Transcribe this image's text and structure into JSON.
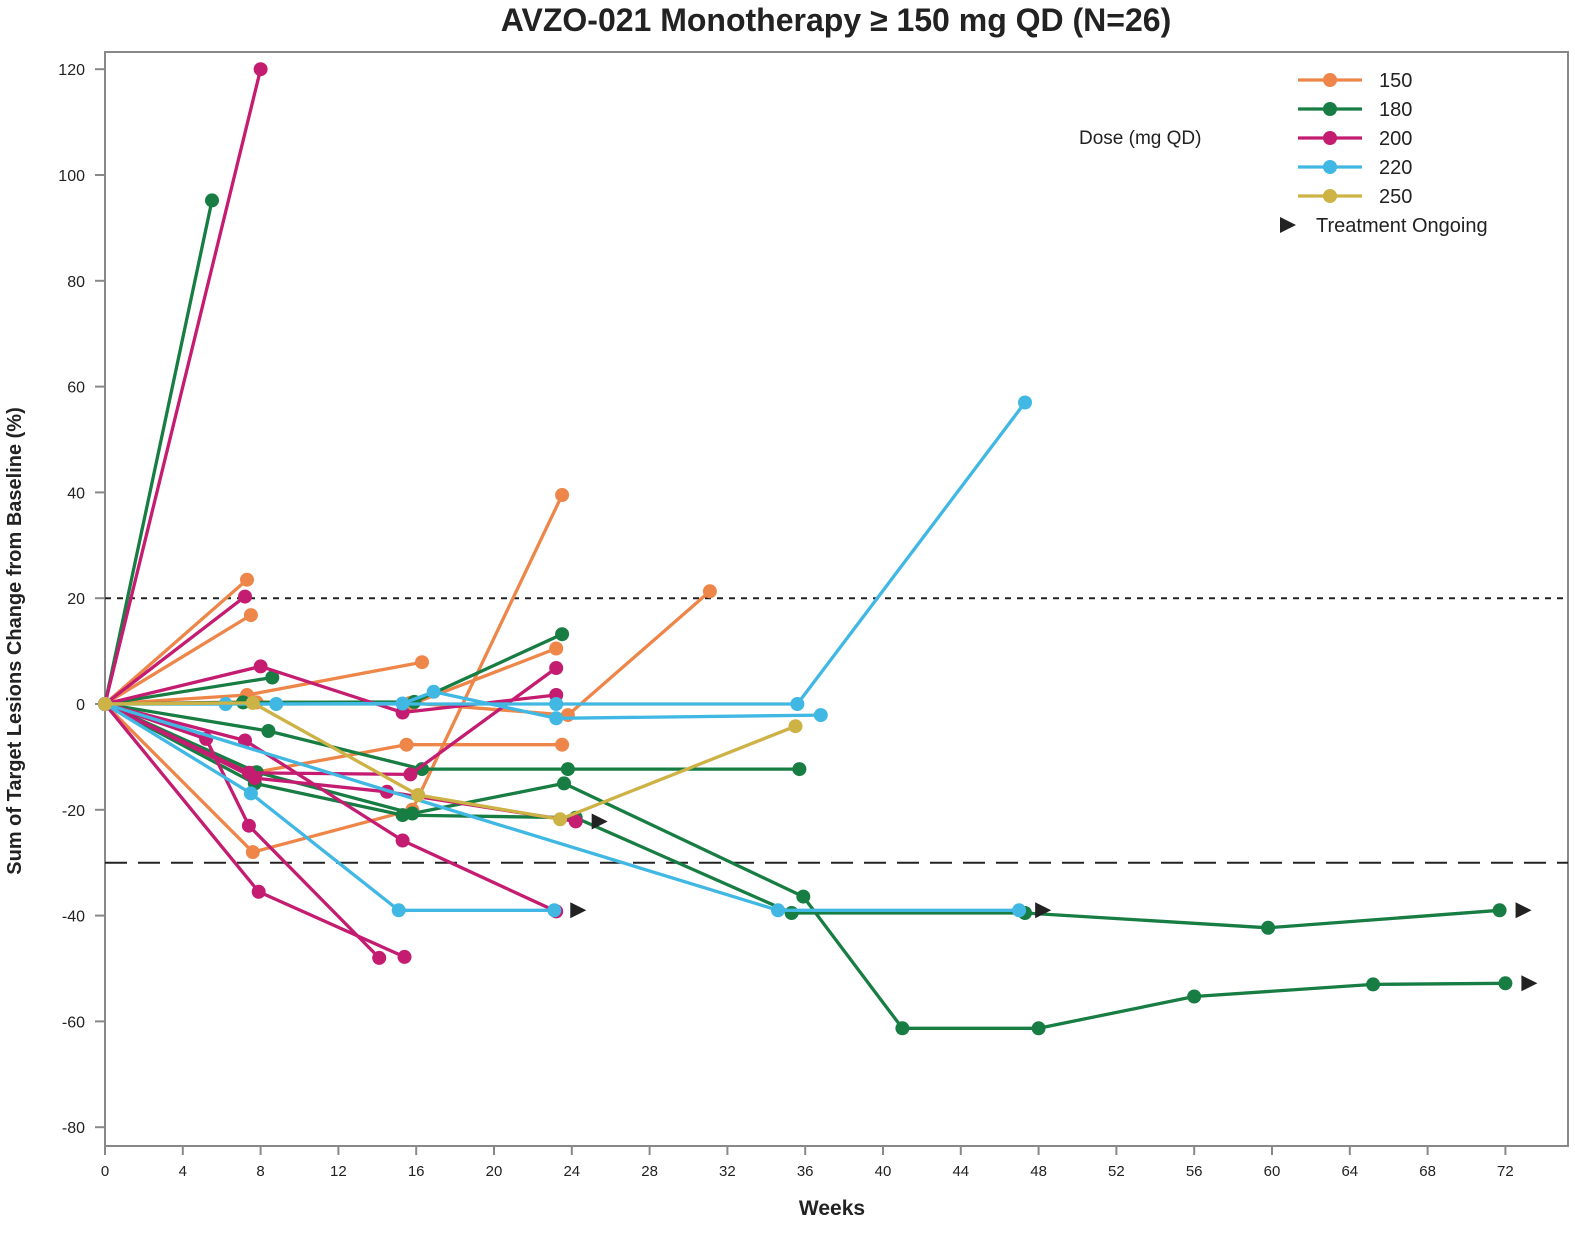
{
  "chart_data": {
    "type": "line",
    "title": "AVZO-021 Monotherapy ≥ 150 mg QD (N=26)",
    "xlabel": "Weeks",
    "ylabel": "Sum of Target Lesions Change from Baseline (%)",
    "xlim": [
      0,
      74
    ],
    "ylim": [
      -83,
      124
    ],
    "xticks": [
      0,
      4,
      8,
      12,
      16,
      20,
      24,
      28,
      32,
      36,
      40,
      44,
      48,
      52,
      56,
      60,
      64,
      68,
      72
    ],
    "yticks": [
      -80,
      -60,
      -40,
      -20,
      0,
      20,
      40,
      60,
      80,
      100,
      120
    ],
    "grid": false,
    "reference_lines": [
      {
        "y": 20,
        "style": "dotted"
      },
      {
        "y": -30,
        "style": "dashed"
      }
    ],
    "legend": {
      "title": "Dose (mg QD)",
      "placement": "top-right",
      "entries": [
        {
          "label": "150",
          "color": "#EE8649"
        },
        {
          "label": "180",
          "color": "#177D43"
        },
        {
          "label": "200",
          "color": "#C41C71"
        },
        {
          "label": "220",
          "color": "#41B8E3"
        },
        {
          "label": "250",
          "color": "#CDB245"
        }
      ],
      "ongoing_label": "Treatment Ongoing"
    },
    "series": [
      {
        "dose": "150",
        "points": [
          [
            0,
            0
          ],
          [
            7.3,
            23.5
          ]
        ]
      },
      {
        "dose": "150",
        "points": [
          [
            0,
            0
          ],
          [
            7.5,
            16.8
          ]
        ]
      },
      {
        "dose": "150",
        "points": [
          [
            0,
            0
          ],
          [
            7.3,
            1.7
          ],
          [
            16.3,
            7.9
          ]
        ]
      },
      {
        "dose": "150",
        "points": [
          [
            0,
            0
          ],
          [
            7.6,
            -13
          ],
          [
            15.5,
            -7.7
          ],
          [
            23.5,
            -7.7
          ]
        ]
      },
      {
        "dose": "150",
        "points": [
          [
            0,
            0
          ],
          [
            7.6,
            -28
          ],
          [
            15.8,
            -20
          ],
          [
            23.5,
            39.5
          ]
        ]
      },
      {
        "dose": "150",
        "points": [
          [
            0,
            0
          ],
          [
            7.6,
            0.4
          ],
          [
            15.8,
            0
          ],
          [
            23.2,
            10.5
          ]
        ]
      },
      {
        "dose": "150",
        "points": [
          [
            0,
            0
          ],
          [
            7.8,
            0.3
          ],
          [
            15.7,
            0.2
          ],
          [
            23.8,
            -2.1
          ],
          [
            31.1,
            21.3
          ]
        ]
      },
      {
        "dose": "180",
        "points": [
          [
            0,
            0
          ],
          [
            5.5,
            95.2
          ]
        ]
      },
      {
        "dose": "180",
        "points": [
          [
            0,
            0
          ],
          [
            8.6,
            5
          ]
        ]
      },
      {
        "dose": "180",
        "points": [
          [
            0,
            0
          ],
          [
            7.1,
            0.3
          ],
          [
            15.9,
            0.4
          ],
          [
            23.5,
            13.2
          ]
        ]
      },
      {
        "dose": "180",
        "points": [
          [
            0,
            0
          ],
          [
            8.4,
            -5.1
          ],
          [
            16.3,
            -12.3
          ],
          [
            23.8,
            -12.3
          ],
          [
            35.7,
            -12.3
          ]
        ]
      },
      {
        "dose": "180",
        "points": [
          [
            0,
            0
          ],
          [
            7.8,
            -12.9
          ],
          [
            15.8,
            -20.7
          ],
          [
            23.6,
            -15
          ],
          [
            35.9,
            -36.4
          ],
          [
            41.0,
            -61.3
          ],
          [
            48.0,
            -61.3
          ],
          [
            56.0,
            -55.3
          ],
          [
            65.2,
            -53
          ],
          [
            72.0,
            -52.8
          ]
        ],
        "ongoing": true
      },
      {
        "dose": "180",
        "points": [
          [
            0,
            0
          ],
          [
            7.7,
            -15
          ],
          [
            15.3,
            -21
          ],
          [
            24.2,
            -21.5
          ],
          [
            35.3,
            -39.5
          ],
          [
            47.3,
            -39.5
          ],
          [
            59.8,
            -42.3
          ],
          [
            71.7,
            -39
          ]
        ],
        "ongoing": true
      },
      {
        "dose": "200",
        "points": [
          [
            0,
            0
          ],
          [
            8.0,
            120
          ]
        ]
      },
      {
        "dose": "200",
        "points": [
          [
            0,
            0
          ],
          [
            7.2,
            20.3
          ]
        ]
      },
      {
        "dose": "200",
        "points": [
          [
            0,
            0
          ],
          [
            8.0,
            7.1
          ],
          [
            15.3,
            -1.6
          ],
          [
            23.2,
            1.7
          ]
        ]
      },
      {
        "dose": "200",
        "points": [
          [
            0,
            0
          ],
          [
            7.4,
            -13
          ],
          [
            15.7,
            -13.3
          ],
          [
            23.2,
            6.8
          ]
        ]
      },
      {
        "dose": "200",
        "points": [
          [
            0,
            0
          ],
          [
            7.7,
            -14
          ],
          [
            14.5,
            -16.6
          ],
          [
            24.2,
            -22.2
          ]
        ],
        "ongoing": true
      },
      {
        "dose": "200",
        "points": [
          [
            0,
            0
          ],
          [
            7.2,
            -6.9
          ],
          [
            15.3,
            -25.8
          ],
          [
            23.2,
            -39.2
          ]
        ]
      },
      {
        "dose": "200",
        "points": [
          [
            0,
            0
          ],
          [
            5.2,
            -6.6
          ],
          [
            7.4,
            -23
          ],
          [
            14.1,
            -48
          ]
        ]
      },
      {
        "dose": "200",
        "points": [
          [
            0,
            0
          ],
          [
            7.9,
            -35.5
          ],
          [
            15.4,
            -47.8
          ]
        ]
      },
      {
        "dose": "220",
        "points": [
          [
            0,
            0
          ],
          [
            6.2,
            0
          ],
          [
            8.8,
            0
          ],
          [
            15.3,
            0.1
          ],
          [
            16.9,
            2.3
          ],
          [
            23.2,
            -2.7
          ],
          [
            36.8,
            -2.1
          ]
        ]
      },
      {
        "dose": "220",
        "points": [
          [
            0,
            0
          ],
          [
            23.2,
            0
          ],
          [
            35.6,
            0
          ],
          [
            47.3,
            57
          ]
        ]
      },
      {
        "dose": "220",
        "points": [
          [
            0,
            0
          ],
          [
            7.5,
            -16.9
          ],
          [
            15.1,
            -39
          ],
          [
            23.1,
            -39
          ]
        ],
        "ongoing": true
      },
      {
        "dose": "220",
        "points": [
          [
            0,
            0
          ],
          [
            34.6,
            -39
          ],
          [
            47.0,
            -39
          ]
        ],
        "ongoing": true
      },
      {
        "dose": "250",
        "points": [
          [
            0,
            0
          ],
          [
            7.6,
            0.2
          ],
          [
            16.1,
            -17.2
          ],
          [
            23.4,
            -21.8
          ],
          [
            35.5,
            -4.2
          ]
        ]
      }
    ]
  }
}
